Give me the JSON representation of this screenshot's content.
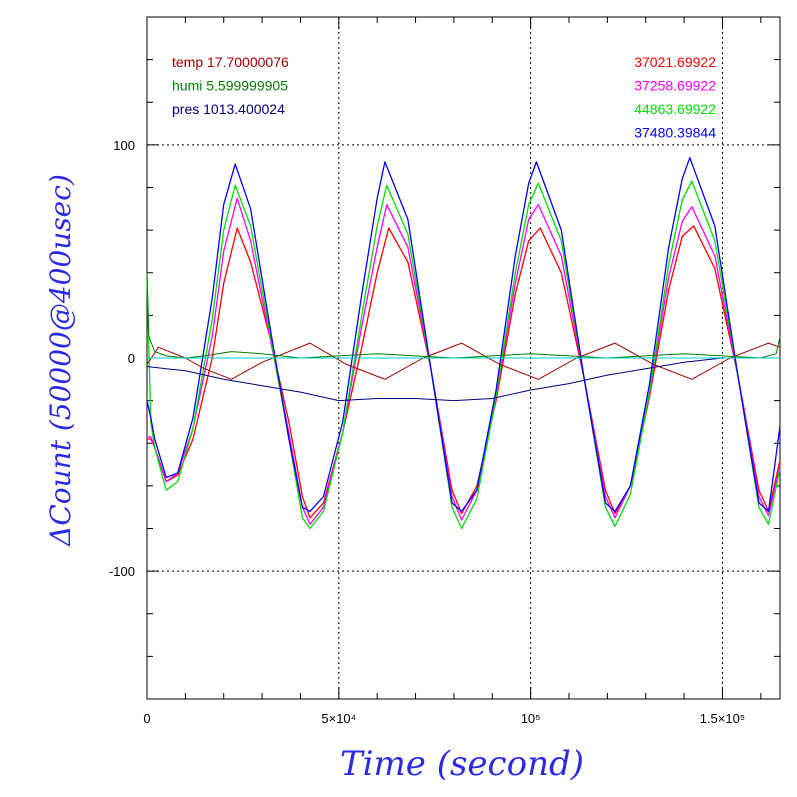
{
  "chart_data": {
    "type": "line",
    "xlabel": "Time (second)",
    "ylabel": "ΔCount (50000@400usec)",
    "xlim": [
      0,
      165000
    ],
    "ylim": [
      -160,
      160
    ],
    "grid": true,
    "x_ticks": [
      {
        "value": 0,
        "label": "0"
      },
      {
        "value": 50000,
        "label": "5×10⁴"
      },
      {
        "value": 100000,
        "label": "10⁵"
      },
      {
        "value": 150000,
        "label": "1.5×10⁵"
      }
    ],
    "y_ticks": [
      {
        "value": 100,
        "label": "100"
      },
      {
        "value": 0,
        "label": "0"
      },
      {
        "value": -100,
        "label": "-100"
      }
    ],
    "legend_left": [
      {
        "text": "temp 17.70000076",
        "color": "#a00000"
      },
      {
        "text": "humi 5.599999905",
        "color": "#008000"
      },
      {
        "text": "pres 1013.400024",
        "color": "#000080"
      }
    ],
    "legend_right": [
      {
        "text": "37021.69922",
        "color": "#ff0000"
      },
      {
        "text": "37258.69922",
        "color": "#ff00ff"
      },
      {
        "text": "44863.69922",
        "color": "#00dd00"
      },
      {
        "text": "37480.39844",
        "color": "#0000ff"
      }
    ],
    "series": [
      {
        "color": "#ff0000",
        "x": [
          0,
          1000,
          2000,
          5000,
          8000,
          12000,
          17000,
          20000,
          23500,
          27000,
          32000,
          37000,
          40500,
          42500,
          46000,
          51000,
          56000,
          60000,
          63000,
          68000,
          74000,
          79500,
          82000,
          86000,
          91000,
          96000,
          99500,
          102500,
          108000,
          114000,
          119500,
          122000,
          126000,
          131000,
          136000,
          139500,
          142500,
          148000,
          154000,
          159500,
          162000,
          165000
        ],
        "y": [
          -38,
          -38,
          -42,
          -58,
          -55,
          -38,
          0,
          35,
          61,
          45,
          10,
          -30,
          -65,
          -75,
          -68,
          -35,
          5,
          40,
          61,
          45,
          -5,
          -62,
          -73,
          -60,
          -20,
          30,
          55,
          61,
          40,
          -10,
          -62,
          -73,
          -60,
          -18,
          32,
          57,
          62,
          42,
          -8,
          -62,
          -72,
          -48
        ]
      },
      {
        "color": "#ff00ff",
        "x": [
          0,
          1000,
          2000,
          5000,
          8000,
          12000,
          17000,
          20000,
          23500,
          27000,
          32000,
          37000,
          40500,
          42500,
          46000,
          51000,
          56000,
          60000,
          62500,
          68000,
          74000,
          79500,
          82000,
          86000,
          91000,
          96000,
          99500,
          102000,
          108000,
          114000,
          119500,
          122000,
          126000,
          131000,
          136000,
          139500,
          142000,
          148000,
          154000,
          159500,
          162000,
          165000
        ],
        "y": [
          -37,
          -37,
          -42,
          -58,
          -54,
          -33,
          10,
          50,
          75,
          55,
          10,
          -35,
          -70,
          -78,
          -70,
          -35,
          15,
          52,
          72,
          52,
          -5,
          -65,
          -76,
          -62,
          -18,
          35,
          65,
          72,
          48,
          -10,
          -65,
          -75,
          -60,
          -16,
          38,
          64,
          71,
          48,
          -8,
          -65,
          -74,
          -50
        ]
      },
      {
        "color": "#00dd00",
        "x": [
          0,
          1000,
          2000,
          5000,
          8000,
          12000,
          17000,
          20000,
          23000,
          27000,
          32000,
          37000,
          40500,
          42500,
          46000,
          51000,
          56000,
          60000,
          62500,
          68000,
          74000,
          79500,
          82000,
          86000,
          91000,
          96000,
          99500,
          102000,
          108000,
          114000,
          119500,
          122000,
          126000,
          131000,
          136000,
          139500,
          142000,
          148000,
          154000,
          159500,
          162000,
          165000
        ],
        "y": [
          38,
          -30,
          -42,
          -62,
          -58,
          -33,
          18,
          60,
          81,
          62,
          12,
          -38,
          -75,
          -80,
          -72,
          -35,
          20,
          62,
          81,
          58,
          -5,
          -70,
          -80,
          -66,
          -18,
          40,
          72,
          82,
          55,
          -10,
          -70,
          -79,
          -64,
          -16,
          44,
          74,
          83,
          55,
          -8,
          -70,
          -78,
          -52
        ]
      },
      {
        "color": "#0000ff",
        "x": [
          0,
          1000,
          2000,
          5000,
          8000,
          12000,
          17000,
          20000,
          23000,
          27000,
          32000,
          37000,
          40500,
          42500,
          46000,
          51000,
          56000,
          60000,
          62000,
          68000,
          74000,
          79500,
          82000,
          86000,
          91000,
          96000,
          99500,
          101500,
          108000,
          114000,
          119500,
          122000,
          126000,
          131000,
          136000,
          139500,
          141500,
          148000,
          154000,
          159500,
          162000,
          165000
        ],
        "y": [
          -20,
          -28,
          -38,
          -56,
          -54,
          -28,
          28,
          72,
          91,
          70,
          15,
          -38,
          -70,
          -72,
          -65,
          -30,
          30,
          75,
          92,
          65,
          -5,
          -68,
          -72,
          -62,
          -15,
          48,
          82,
          92,
          60,
          -10,
          -68,
          -72,
          -60,
          -12,
          52,
          84,
          94,
          62,
          -8,
          -68,
          -72,
          -32
        ]
      },
      {
        "color": "#a00000",
        "x": [
          0,
          3000,
          10000,
          15000,
          22000,
          30000,
          42500,
          52000,
          62000,
          72000,
          82000,
          92000,
          102000,
          112000,
          122000,
          132000,
          142000,
          152000,
          162000,
          165000
        ],
        "y": [
          -3,
          5,
          0,
          -5,
          -10,
          -2,
          7,
          -3,
          -10,
          0,
          7,
          -3,
          -10,
          0,
          7,
          -3,
          -10,
          0,
          7,
          5
        ]
      },
      {
        "color": "#008000",
        "x": [
          0,
          500,
          2000,
          5000,
          10000,
          15000,
          22000,
          30000,
          40000,
          50000,
          60000,
          70000,
          80000,
          90000,
          100000,
          110000,
          120000,
          130000,
          140000,
          150000,
          160000,
          164000,
          165000
        ],
        "y": [
          40,
          10,
          3,
          1,
          0,
          1,
          3,
          2,
          0,
          1,
          2,
          1,
          0,
          1,
          2,
          1,
          0,
          1,
          2,
          1,
          0,
          2,
          10
        ]
      },
      {
        "color": "#000080",
        "x": [
          0,
          5000,
          10000,
          20000,
          30000,
          40000,
          50000,
          60000,
          70000,
          80000,
          90000,
          100000,
          110000,
          120000,
          130000,
          140000,
          150000,
          160000,
          165000
        ],
        "y": [
          -4,
          -5,
          -6,
          -10,
          -13,
          -16,
          -20,
          -19,
          -19,
          -20,
          -19,
          -15,
          -12,
          -8,
          -5,
          -2,
          0,
          0,
          0
        ]
      },
      {
        "color": "#00cccc",
        "x": [
          0,
          20000,
          40000,
          60000,
          80000,
          100000,
          120000,
          140000,
          165000
        ],
        "y": [
          0,
          0,
          0,
          0,
          0,
          0,
          0,
          0,
          0
        ]
      }
    ]
  }
}
